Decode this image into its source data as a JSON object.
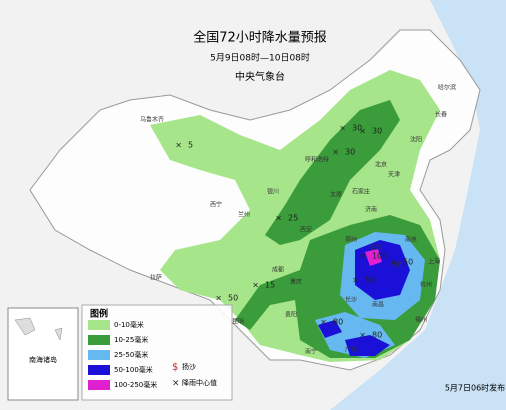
{
  "header": {
    "title": "全国72小时降水量预报",
    "subtitle": "5月9日08时—10日08时",
    "issuer": "中央气象台"
  },
  "legend": {
    "title": "图例",
    "items": [
      {
        "label": "0-10毫米",
        "color": "#a6e58a"
      },
      {
        "label": "10-25毫米",
        "color": "#3a9c3a"
      },
      {
        "label": "25-50毫米",
        "color": "#66b8f0"
      },
      {
        "label": "50-100毫米",
        "color": "#1a10d8"
      },
      {
        "label": "100-250毫米",
        "color": "#e020d0"
      }
    ],
    "symbols": [
      {
        "label": "扬沙"
      },
      {
        "label": "降雨中心值"
      }
    ]
  },
  "inset": {
    "label": "南海诸岛"
  },
  "footer": {
    "issued": "5月7日06时发布"
  },
  "cities": [
    "乌鲁木齐",
    "拉萨",
    "西宁",
    "兰州",
    "银川",
    "呼和浩特",
    "北京",
    "天津",
    "石家庄",
    "太原",
    "西安",
    "成都",
    "重庆",
    "贵阳",
    "昆明",
    "南宁",
    "长沙",
    "武汉",
    "南京",
    "上海",
    "杭州",
    "合肥",
    "南昌",
    "福州",
    "广州",
    "郑州",
    "济南",
    "沈阳",
    "长春",
    "哈尔滨"
  ],
  "rain_centers": [
    "5",
    "30",
    "30",
    "30",
    "25",
    "15",
    "50",
    "100",
    "50",
    "50",
    "80",
    "80"
  ]
}
